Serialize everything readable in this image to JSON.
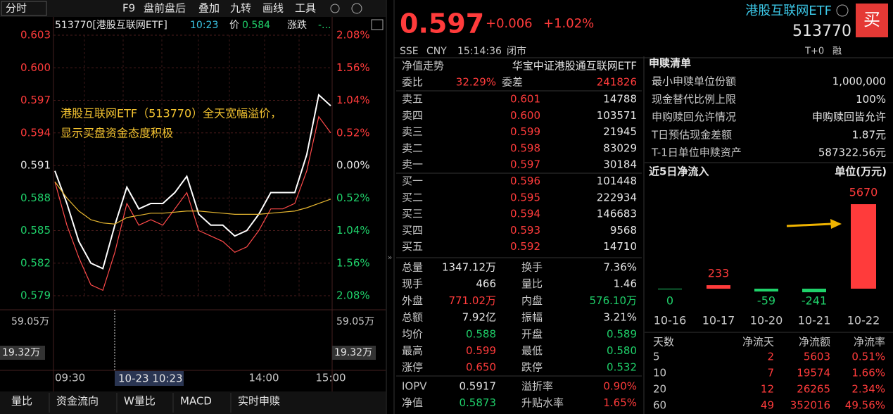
{
  "toolbar": {
    "period": "分时",
    "items": [
      "F9",
      "盘前盘后",
      "叠加",
      "九转",
      "画线",
      "工具"
    ]
  },
  "intraday": {
    "type": "line",
    "header": {
      "code": "513770[港股互联网ETF]",
      "time": "10:23",
      "price_label": "价",
      "price": "0.584",
      "change_label": "涨跌",
      "change": "-..."
    },
    "annotation": [
      "港股互联网ETF（513770）全天宽幅溢价，",
      "显示买盘资金态度积极"
    ],
    "ylim": [
      0.579,
      0.603
    ],
    "yticks": [
      {
        "value": 0.603,
        "label": "0.603"
      },
      {
        "value": 0.6,
        "label": "0.600"
      },
      {
        "value": 0.597,
        "label": "0.597"
      },
      {
        "value": 0.594,
        "label": "0.594"
      },
      {
        "value": 0.591,
        "label": "0.591"
      },
      {
        "value": 0.588,
        "label": "0.588"
      },
      {
        "value": 0.585,
        "label": "0.585"
      },
      {
        "value": 0.582,
        "label": "0.582"
      },
      {
        "value": 0.579,
        "label": "0.579"
      }
    ],
    "pct_ticks": [
      "2.08%",
      "1.56%",
      "1.04%",
      "0.52%",
      "0.00%",
      "0.52%",
      "1.04%",
      "1.56%",
      "2.08%"
    ],
    "volume_ticks": [
      "59.05万",
      "19.32万"
    ],
    "xticks": [
      "09:30",
      "14:00",
      "15:00"
    ],
    "crosshair_time": "10-23 10:23",
    "series": [
      {
        "color": "#ff4a4a",
        "values": [
          0.5895,
          0.5855,
          0.5825,
          0.58,
          0.5795,
          0.583,
          0.5875,
          0.5855,
          0.586,
          0.5855,
          0.587,
          0.5885,
          0.585,
          0.5845,
          0.584,
          0.583,
          0.5835,
          0.585,
          0.587,
          0.587,
          0.5875,
          0.5905,
          0.5955,
          0.594
        ]
      },
      {
        "color": "#ffffff",
        "values": [
          0.5905,
          0.5875,
          0.584,
          0.582,
          0.5815,
          0.5855,
          0.589,
          0.587,
          0.5875,
          0.5875,
          0.5885,
          0.59,
          0.5865,
          0.5855,
          0.5855,
          0.5845,
          0.585,
          0.5865,
          0.5885,
          0.5885,
          0.5885,
          0.592,
          0.5975,
          0.5965
        ]
      },
      {
        "color": "#e8b830",
        "values": [
          0.5895,
          0.588,
          0.5868,
          0.586,
          0.5857,
          0.5856,
          0.5862,
          0.5864,
          0.5866,
          0.5866,
          0.5867,
          0.5868,
          0.5868,
          0.5867,
          0.5866,
          0.5865,
          0.5865,
          0.5865,
          0.5866,
          0.5867,
          0.5868,
          0.5871,
          0.5875,
          0.5879
        ]
      }
    ]
  },
  "tabs": [
    "量比",
    "资金流向",
    "W量比",
    "MACD",
    "实时申赎"
  ],
  "quote": {
    "price": "0.597",
    "change": "+0.006",
    "change_pct": "+1.02%",
    "market": "SSE",
    "currency": "CNY",
    "time": "15:14:36",
    "status": "闭市"
  },
  "nav_row": [
    "净值走势",
    "华宝中证港股通互联网ETF"
  ],
  "ratio_row": [
    "委比",
    "32.29%",
    "委差",
    "241826"
  ],
  "asks": [
    [
      "卖五",
      "0.601",
      "14788"
    ],
    [
      "卖四",
      "0.600",
      "103571"
    ],
    [
      "卖三",
      "0.599",
      "21945"
    ],
    [
      "卖二",
      "0.598",
      "83029"
    ],
    [
      "卖一",
      "0.597",
      "30184"
    ]
  ],
  "bids": [
    [
      "买一",
      "0.596",
      "101448"
    ],
    [
      "买二",
      "0.595",
      "222934"
    ],
    [
      "买三",
      "0.594",
      "146683"
    ],
    [
      "买四",
      "0.593",
      "9568"
    ],
    [
      "买五",
      "0.592",
      "14710"
    ]
  ],
  "stats": [
    [
      "总量",
      "1347.12万",
      "换手",
      "7.36%"
    ],
    [
      "现手",
      "466",
      "量比",
      "1.46"
    ],
    [
      "外盘",
      "771.02万",
      "内盘",
      "576.10万"
    ],
    [
      "总额",
      "7.92亿",
      "振幅",
      "3.21%"
    ],
    [
      "均价",
      "0.588",
      "开盘",
      "0.589"
    ],
    [
      "最高",
      "0.599",
      "最低",
      "0.580"
    ],
    [
      "涨停",
      "0.650",
      "跌停",
      "0.532"
    ],
    [
      "IOPV",
      "0.5917",
      "溢折率",
      "0.90%"
    ],
    [
      "净值",
      "0.5873",
      "升贴水率",
      "1.65%"
    ]
  ],
  "security": {
    "name": "港股互联网ETF",
    "code": "513770",
    "buy": "买",
    "trade_rule": "T+0",
    "margin": "融"
  },
  "creation": {
    "title": "申赎清单",
    "rows": [
      [
        "最小申赎单位份额",
        "1,000,000"
      ],
      [
        "现金替代比例上限",
        "100%"
      ],
      [
        "申购赎回允许情况",
        "申购赎回皆允许"
      ],
      [
        "T日预估现金差额",
        "1.87元"
      ],
      [
        "T-1日单位申赎资产",
        "587322.56元"
      ]
    ]
  },
  "inflow": {
    "type": "bar",
    "title": "近5日净流入",
    "unit": "单位(万元)",
    "categories": [
      "10-16",
      "10-17",
      "10-20",
      "10-21",
      "10-22"
    ],
    "values": [
      0,
      233,
      -59,
      -241,
      5670
    ]
  },
  "flow_table": {
    "header": [
      "天数",
      "净流天",
      "净流额",
      "净流率"
    ],
    "rows": [
      [
        "5",
        "2",
        "5603",
        "0.51%"
      ],
      [
        "10",
        "7",
        "19574",
        "1.66%"
      ],
      [
        "20",
        "12",
        "26265",
        "2.34%"
      ],
      [
        "60",
        "49",
        "352016",
        "49.56%"
      ]
    ]
  }
}
